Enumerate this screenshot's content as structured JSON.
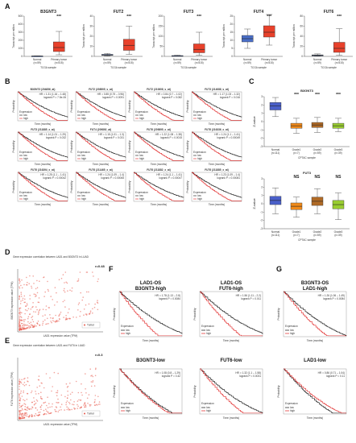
{
  "panel_labels": {
    "A": "A",
    "B": "B",
    "C": "C",
    "D": "D",
    "E": "E",
    "F": "F",
    "G": "G"
  },
  "colors": {
    "normal_box": "#4a6fc8",
    "tumor_box": "#e8412b",
    "km_low": "#111111",
    "km_high": "#e02020",
    "scatter": "#e8574a",
    "c_normal": "#4a5fc9",
    "c_g1": "#f08a1a",
    "c_g2": "#b06a26",
    "c_g3": "#9acd32"
  },
  "panelA": {
    "ylabel": "Transcript per million",
    "xlabel": "TCGA sample",
    "charts": [
      {
        "title": "B3GNT3",
        "sig": "***",
        "normal": "Normal\n(n=59)",
        "tumor": "Primary tumor\n(n=515)",
        "ticks": [
          "0",
          "100",
          "200",
          "300",
          "400",
          "500"
        ],
        "normal_box": [
          2,
          3,
          4,
          5,
          7
        ],
        "tumor_box": [
          20,
          60,
          110,
          180,
          310
        ],
        "ymax": 500
      },
      {
        "title": "FUT2",
        "sig": "***",
        "normal": "Normal\n(n=59)",
        "tumor": "Primary tumor\n(n=515)",
        "ticks": [
          "0",
          "10",
          "20",
          "30",
          "40"
        ],
        "normal_box": [
          0.5,
          1,
          1.5,
          2,
          3
        ],
        "tumor_box": [
          2,
          6,
          11,
          17,
          30
        ],
        "ymax": 40
      },
      {
        "title": "FUT3",
        "sig": "***",
        "normal": "Normal\n(n=59)",
        "tumor": "Primary tumor\n(n=515)",
        "ticks": [
          "0",
          "50",
          "100",
          "150",
          "200"
        ],
        "normal_box": [
          1,
          2,
          3,
          4,
          6
        ],
        "tumor_box": [
          5,
          18,
          35,
          62,
          120
        ],
        "ymax": 200
      },
      {
        "title": "FUT4",
        "sig": "***",
        "normal": "Normal\n(n=59)",
        "tumor": "Primary tumor\n(n=515)",
        "ticks": [
          "0",
          "5",
          "10",
          "15",
          "20",
          "25"
        ],
        "normal_box": [
          5,
          9,
          11,
          13,
          17
        ],
        "tumor_box": [
          7,
          12,
          15,
          19,
          26
        ],
        "ymax": 25
      },
      {
        "title": "FUT6",
        "sig": "***",
        "normal": "Normal\n(n=59)",
        "tumor": "Primary tumor\n(n=515)",
        "ticks": [
          "0",
          "20",
          "40",
          "60",
          "80"
        ],
        "normal_box": [
          0.3,
          1,
          2,
          3,
          5
        ],
        "tumor_box": [
          2,
          8,
          16,
          28,
          55
        ],
        "ymax": 80
      }
    ],
    "normal_label": "Normal",
    "normal_n": "(n=59)",
    "tumor_label": "Primary tumor",
    "tumor_n": "(n=515)"
  },
  "panelB": {
    "xlabel": "Time (months)",
    "ylabel": "Probability",
    "legend_title": "Expression",
    "legend_low": "low",
    "legend_high": "high",
    "plots": [
      {
        "title": "B3GNT3 (204856_at)",
        "hr": "HR = 1.31 (1.16 – 1.48)",
        "p": "logrank P = 7.5e-06"
      },
      {
        "title": "FUT2 (208505_s_at)",
        "hr": "HR = 0.85 (0.75 – 0.96)",
        "p": "logrank P = 0.0091"
      },
      {
        "title": "FUT2 (210608_s_at)",
        "hr": "HR = 0.84 (0.7 – 1.02)",
        "p": "logrank P = 0.082"
      },
      {
        "title": "FUT3 (214088_s_at)",
        "hr": "HR = 1.17 (1.03 – 1.32)",
        "p": "logrank P = 0.016"
      },
      {
        "title": "FUT3 (211885_x_at)",
        "hr": "HR = 1.14 (1.01 – 1.29)",
        "p": "logrank P = 0.032"
      },
      {
        "title": "FUT4 (209892_at)",
        "hr": "HR = 1.15 (1.01 – 1.3)",
        "p": "logrank P = 0.031"
      },
      {
        "title": "FUT6 (209895_x_at)",
        "hr": "HR = 1.22 (1.08 – 1.38)",
        "p": "logrank P = 0.0015"
      },
      {
        "title": "FUT6 (216336_x_at)",
        "hr": "HR = 1.24 (1.1 – 1.41)",
        "p": "logrank P = 0.00049"
      },
      {
        "title": "FUT6 (216394_x_at)",
        "hr": "HR = 1.25 (1.1 – 1.41)",
        "p": "logrank P = 0.00042"
      },
      {
        "title": "FUT6 (211465_x_at)",
        "hr": "HR = 1.24 (1.09 – 1.4)",
        "p": "logrank P = 0.00065"
      },
      {
        "title": "FUT6 (211882_x_at)",
        "hr": "HR = 1.24 (1.1 – 1.41)",
        "p": "logrank P = 0.00047"
      },
      {
        "title": "FUT6 (211885_x_at)",
        "hr": "HR = 1.23 (1.09 – 1.4)",
        "p": "logrank P = 0.00081"
      }
    ]
  },
  "panelC": {
    "xlabel": "CPTAC sample",
    "ylabel": "Z-value",
    "charts": [
      {
        "title": "B3GNT3",
        "groups": [
          "Normal\n(n=111)",
          "Grade1\n(n=7)",
          "Grade2\n(n=59)",
          "Grade3\n(n=39)"
        ],
        "sigs": [
          "",
          "***",
          "***",
          "***"
        ],
        "ticks": [
          "3",
          "2",
          "1",
          "0",
          "-1",
          "-2",
          "-3"
        ],
        "boxes": [
          [
            0.6,
            1.4,
            1.9,
            2.3,
            2.9
          ],
          [
            -1.4,
            -0.8,
            -0.5,
            -0.2,
            0.4
          ],
          [
            -1.3,
            -0.7,
            -0.4,
            -0.1,
            0.5
          ],
          [
            -1.2,
            -0.8,
            -0.5,
            -0.2,
            0.4
          ]
        ]
      },
      {
        "title": "FUT3",
        "groups": [
          "Normal\n(n=111)",
          "Grade1\n(n=7)",
          "Grade2\n(n=59)",
          "Grade3\n(n=39)"
        ],
        "sigs": [
          "",
          "NS",
          "NS",
          "NS"
        ],
        "ticks": [
          "3",
          "2",
          "1",
          "0",
          "-1",
          "-2",
          "-3"
        ],
        "boxes": [
          [
            -1.2,
            -0.1,
            0.4,
            0.9,
            1.9
          ],
          [
            -1.6,
            -0.7,
            -0.3,
            0.1,
            0.8
          ],
          [
            -1.2,
            -0.2,
            0.3,
            0.8,
            1.8
          ],
          [
            -1.9,
            -0.6,
            -0.1,
            0.4,
            1.3
          ]
        ]
      }
    ]
  },
  "panelD": {
    "title": "Gene expression correlation between LAD1 and B3GNT3 in LUAD",
    "r": "r=0.48",
    "xlabel": "LAD1 expression value (TPM)",
    "ylabel": "B3GNT3 expression value (TPM)",
    "legend": "Tumor"
  },
  "panelE": {
    "title": "Gene expression correlation between LAD1 and FUT6 in LUAD",
    "r": "r=0.3",
    "xlabel": "LAD1 expression value (TPM)",
    "ylabel": "FUT6 expression value (TPM)",
    "legend": "Tumor"
  },
  "panelF": {
    "xlabel": "Time (months)",
    "ylabel": "Probability",
    "legend_title": "Expression",
    "legend_low": "low",
    "legend_high": "high",
    "plots": [
      {
        "t1": "LAD1-OS",
        "t2": "B3GNT3-high",
        "hr": "HR = 1.78 (1.13 – 2.8)",
        "p": "logrank P = 0.0084"
      },
      {
        "t1": "LAD1-OS",
        "t2": "FUT6-high",
        "hr": "HR = 1.56 (1.11 – 2.2)",
        "p": "logrank P = 0.011"
      },
      {
        "t1": "B3GNT3-low",
        "t2": "",
        "hr": "HR = 1.08 (0.8 – 1.29)",
        "p": "logrank P = 0.42"
      },
      {
        "t1": "FUT6-low",
        "t2": "",
        "hr": "HR = 1.32 (1.1 – 1.58)",
        "p": "logrank P = 0.0031"
      }
    ]
  },
  "panelG": {
    "xlabel": "Time (months)",
    "ylabel": "Probability",
    "legend_title": "Expression",
    "legend_low": "low",
    "legend_high": "high",
    "plots": [
      {
        "t1": "B3GNT3-OS",
        "t2": "LAD1-high",
        "hr": "HR = 1.26 (1.06 – 1.49)",
        "p": "logrank P = 0.0084"
      },
      {
        "t1": "LAD1-low",
        "t2": "",
        "hr": "HR = 0.86 (0.71 – 1.04)",
        "p": "logrank P = 0.11"
      }
    ]
  }
}
